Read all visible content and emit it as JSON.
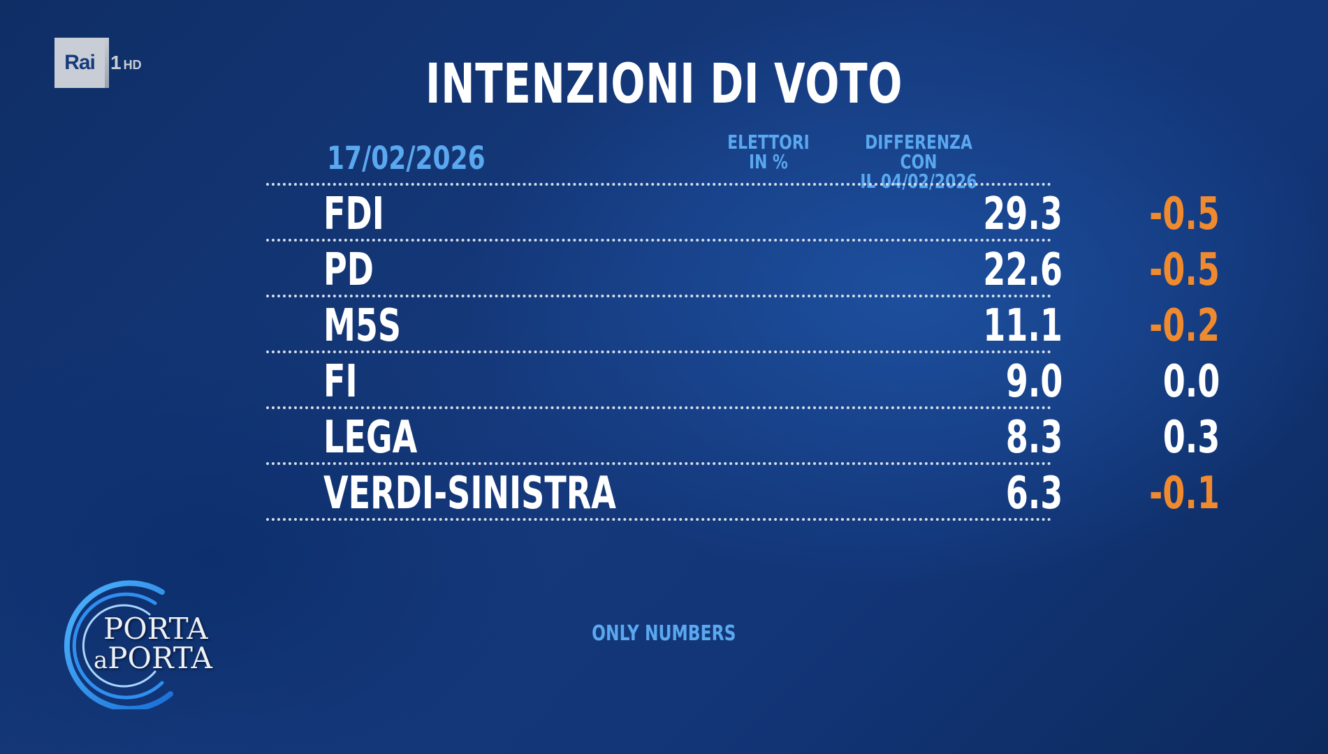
{
  "channel": {
    "brand": "Rai",
    "number": "1",
    "quality": "HD"
  },
  "title": "INTENZIONI DI VOTO",
  "header": {
    "date": "17/02/2026",
    "col_voters_line1": "ELETTORI",
    "col_voters_line2": "IN %",
    "col_diff_line1": "DIFFERENZA CON",
    "col_diff_line2": "IL 04/02/2026"
  },
  "rows": [
    {
      "party": "FDI",
      "pct": "29.3",
      "diff": "-0.5"
    },
    {
      "party": "PD",
      "pct": "22.6",
      "diff": "-0.5"
    },
    {
      "party": "M5S",
      "pct": "11.1",
      "diff": "-0.2"
    },
    {
      "party": "FI",
      "pct": "9.0",
      "diff": "0.0"
    },
    {
      "party": "LEGA",
      "pct": "8.3",
      "diff": "0.3"
    },
    {
      "party": "VERDI-SINISTRA",
      "pct": "6.3",
      "diff": "-0.1"
    }
  ],
  "footer_note": "ONLY NUMBERS",
  "show_logo": {
    "line1": "PORTA",
    "line2_a": "a",
    "line2_b": "PORTA"
  },
  "colors": {
    "accent_blue": "#5aa8ef",
    "negative": "#f08a2f",
    "text": "#ffffff"
  }
}
